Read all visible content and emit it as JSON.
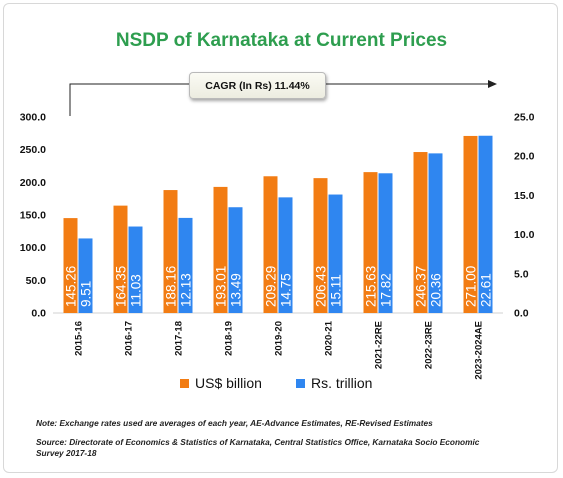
{
  "title": "NSDP of Karnataka at Current Prices",
  "cagr_label": "CAGR (In Rs) 11.44%",
  "legend": {
    "usd": "US$ billion",
    "inr": "Rs. trillion"
  },
  "note": "Note: Exchange rates used are averages of each year, AE-Advance Estimates, RE-Revised Estimates",
  "source": "Source: Directorate of Economics & Statistics of Karnataka, Central Statistics Office, Karnataka Socio Economic Survey 2017-18",
  "colors": {
    "title": "#2e9e4f",
    "usd": "#f27c13",
    "inr": "#2f86f0"
  },
  "chart_data": {
    "type": "bar",
    "title": "NSDP of Karnataka at Current Prices",
    "categories": [
      "2015-16",
      "2016-17",
      "2017-18",
      "2018-19",
      "2019-20",
      "2020-21",
      "2021-22RE",
      "2022-23RE",
      "2023-2024AE"
    ],
    "series": [
      {
        "name": "US$ billion",
        "axis": "left",
        "values": [
          145.26,
          164.35,
          188.16,
          193.01,
          209.29,
          206.43,
          215.63,
          246.37,
          271.0
        ],
        "labels": [
          "145.26",
          "164.35",
          "188.16",
          "193.01",
          "209.29",
          "206.43",
          "215.63",
          "246.37",
          "271.00"
        ]
      },
      {
        "name": "Rs. trillion",
        "axis": "right",
        "values": [
          9.51,
          11.03,
          12.13,
          13.49,
          14.75,
          15.11,
          17.82,
          20.36,
          22.61
        ],
        "labels": [
          "9.51",
          "11.03",
          "12.13",
          "13.49",
          "14.75",
          "15.11",
          "17.82",
          "20.36",
          "22.61"
        ]
      }
    ],
    "y_left": {
      "ylim": [
        0,
        300
      ],
      "ticks": [
        "0.0",
        "50.0",
        "100.0",
        "150.0",
        "200.0",
        "250.0",
        "300.0"
      ]
    },
    "y_right": {
      "ylim": [
        0,
        25
      ],
      "ticks": [
        "0.0",
        "5.0",
        "10.0",
        "15.0",
        "20.0",
        "25.0"
      ]
    },
    "annotation": "CAGR (In Rs) 11.44%",
    "legend_position": "bottom",
    "grid": false
  }
}
